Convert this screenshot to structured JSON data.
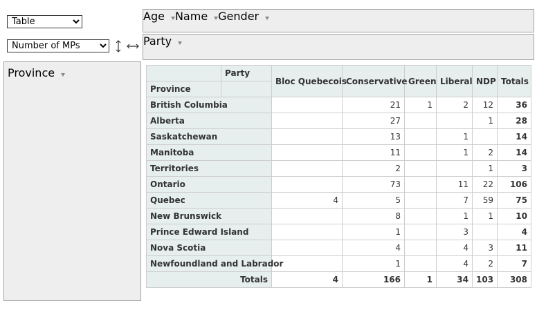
{
  "renderer": {
    "selected": "Table"
  },
  "aggregator": {
    "selected": "Number of MPs"
  },
  "unused_attributes": [
    "Age",
    "Name",
    "Gender"
  ],
  "column_attributes": [
    "Party"
  ],
  "row_attributes": [
    "Province"
  ],
  "table": {
    "column_attribute": "Party",
    "row_attribute": "Province",
    "columns": [
      "Bloc Quebecois",
      "Conservative",
      "Green",
      "Liberal",
      "NDP",
      "Totals"
    ],
    "rows": [
      {
        "label": "British Columbia",
        "values": [
          null,
          21,
          1,
          2,
          12,
          36
        ]
      },
      {
        "label": "Alberta",
        "values": [
          null,
          27,
          null,
          null,
          1,
          28
        ]
      },
      {
        "label": "Saskatchewan",
        "values": [
          null,
          13,
          null,
          1,
          null,
          14
        ]
      },
      {
        "label": "Manitoba",
        "values": [
          null,
          11,
          null,
          1,
          2,
          14
        ]
      },
      {
        "label": "Territories",
        "values": [
          null,
          2,
          null,
          null,
          1,
          3
        ]
      },
      {
        "label": "Ontario",
        "values": [
          null,
          73,
          null,
          11,
          22,
          106
        ]
      },
      {
        "label": "Quebec",
        "values": [
          4,
          5,
          null,
          7,
          59,
          75
        ]
      },
      {
        "label": "New Brunswick",
        "values": [
          null,
          8,
          null,
          1,
          1,
          10
        ]
      },
      {
        "label": "Prince Edward Island",
        "values": [
          null,
          1,
          null,
          3,
          null,
          4
        ]
      },
      {
        "label": "Nova Scotia",
        "values": [
          null,
          4,
          null,
          4,
          3,
          11
        ]
      },
      {
        "label": "Newfoundland and Labrador",
        "values": [
          null,
          1,
          null,
          4,
          2,
          7
        ]
      }
    ],
    "totals": {
      "label": "Totals",
      "values": [
        4,
        166,
        1,
        34,
        103,
        308
      ]
    }
  }
}
